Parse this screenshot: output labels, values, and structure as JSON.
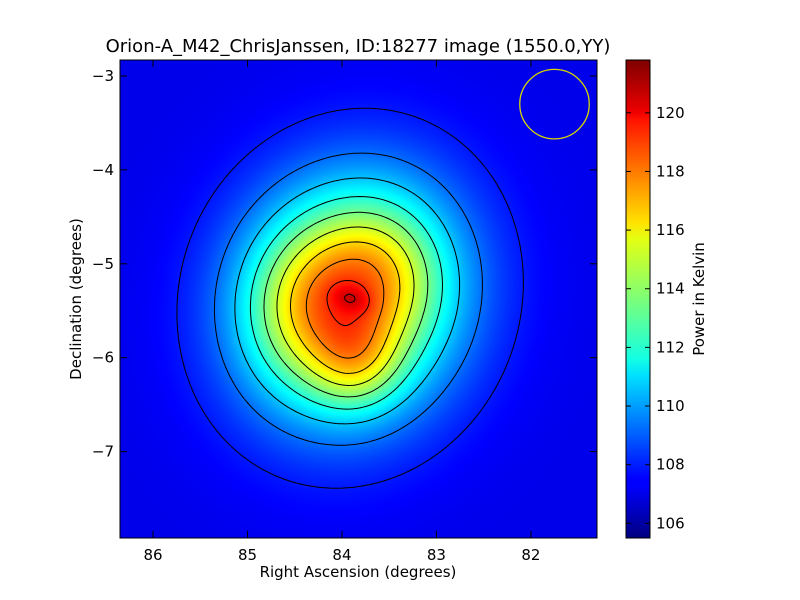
{
  "chart_data": {
    "type": "heatmap",
    "title": "Orion-A_M42_ChrisJanssen, ID:18277 image (1550.0,YY)",
    "xlabel": "Right Ascension (degrees)",
    "ylabel": "Declination (degrees)",
    "xlim": [
      86.35,
      81.3
    ],
    "ylim": [
      -7.92,
      -2.83
    ],
    "x_ticks": [
      86,
      85,
      84,
      83,
      82
    ],
    "x_tick_labels": [
      "86",
      "85",
      "84",
      "83",
      "82"
    ],
    "y_ticks": [
      -3,
      -4,
      -5,
      -6,
      -7
    ],
    "y_tick_labels": [
      "−3",
      "−4",
      "−5",
      "−6",
      "−7"
    ],
    "colorbar": {
      "label": "Power in Kelvin",
      "range": [
        105.5,
        121.8
      ],
      "ticks": [
        106,
        108,
        110,
        112,
        114,
        116,
        118,
        120
      ],
      "tick_labels": [
        "106",
        "108",
        "110",
        "112",
        "114",
        "116",
        "118",
        "120"
      ],
      "colormap": "jet"
    },
    "background_value": 107.2,
    "peak": {
      "ra": 83.9,
      "dec": -5.37,
      "value": 121.7
    },
    "contour_levels": [
      107.9,
      109.3,
      110.7,
      112.1,
      113.5,
      114.9,
      116.3,
      117.7,
      119.1,
      120.5
    ],
    "beam": {
      "ra": 81.75,
      "dec": -3.3,
      "radius_deg": 0.37,
      "color": "#d8d800"
    }
  }
}
